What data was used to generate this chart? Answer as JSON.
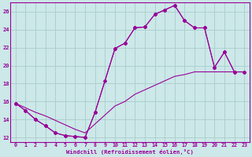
{
  "xlabel": "Windchill (Refroidissement éolien,°C)",
  "bg_color": "#cce8e8",
  "grid_color": "#aacccc",
  "line_color": "#990099",
  "xlim": [
    -0.5,
    23.5
  ],
  "ylim": [
    11.5,
    27.0
  ],
  "yticks": [
    12,
    14,
    16,
    18,
    20,
    22,
    24,
    26
  ],
  "xticks": [
    0,
    1,
    2,
    3,
    4,
    5,
    6,
    7,
    8,
    9,
    10,
    11,
    12,
    13,
    14,
    15,
    16,
    17,
    18,
    19,
    20,
    21,
    22,
    23
  ],
  "line1_x": [
    0,
    1,
    2,
    3,
    4,
    5,
    6,
    7,
    8,
    9,
    10,
    11,
    12,
    13,
    14,
    15,
    16,
    17,
    18,
    19,
    20,
    21,
    22,
    23
  ],
  "line1_y": [
    15.8,
    15.0,
    14.0,
    13.3,
    12.5,
    12.2,
    12.1,
    12.0,
    14.8,
    18.3,
    21.9,
    22.5,
    24.2,
    24.3,
    25.7,
    26.2,
    26.7,
    25.0,
    24.2,
    24.2,
    19.8,
    21.5,
    19.3,
    19.3
  ],
  "line2_x": [
    0,
    1,
    2,
    3,
    4,
    5,
    6,
    7,
    8,
    9,
    10,
    11,
    12,
    13,
    14,
    15,
    16,
    17,
    18,
    19,
    20,
    21,
    22,
    23
  ],
  "line2_y": [
    15.8,
    15.3,
    14.8,
    14.4,
    13.9,
    13.4,
    12.9,
    12.5,
    13.5,
    14.5,
    15.5,
    16.0,
    16.8,
    17.3,
    17.8,
    18.3,
    18.8,
    19.0,
    19.3,
    19.3,
    19.3,
    19.3,
    19.3,
    19.3
  ],
  "line3_x": [
    0,
    1,
    2,
    3,
    4,
    5,
    6,
    7,
    8,
    10,
    11,
    12,
    13,
    14,
    15,
    16,
    17,
    18,
    19,
    20,
    21,
    22,
    23
  ],
  "line3_y": [
    15.8,
    15.0,
    14.0,
    13.3,
    12.5,
    12.2,
    12.1,
    12.0,
    14.8,
    21.9,
    22.5,
    24.2,
    24.3,
    25.7,
    26.2,
    26.7,
    25.0,
    24.2,
    24.2,
    19.8,
    21.5,
    19.3,
    19.3
  ]
}
